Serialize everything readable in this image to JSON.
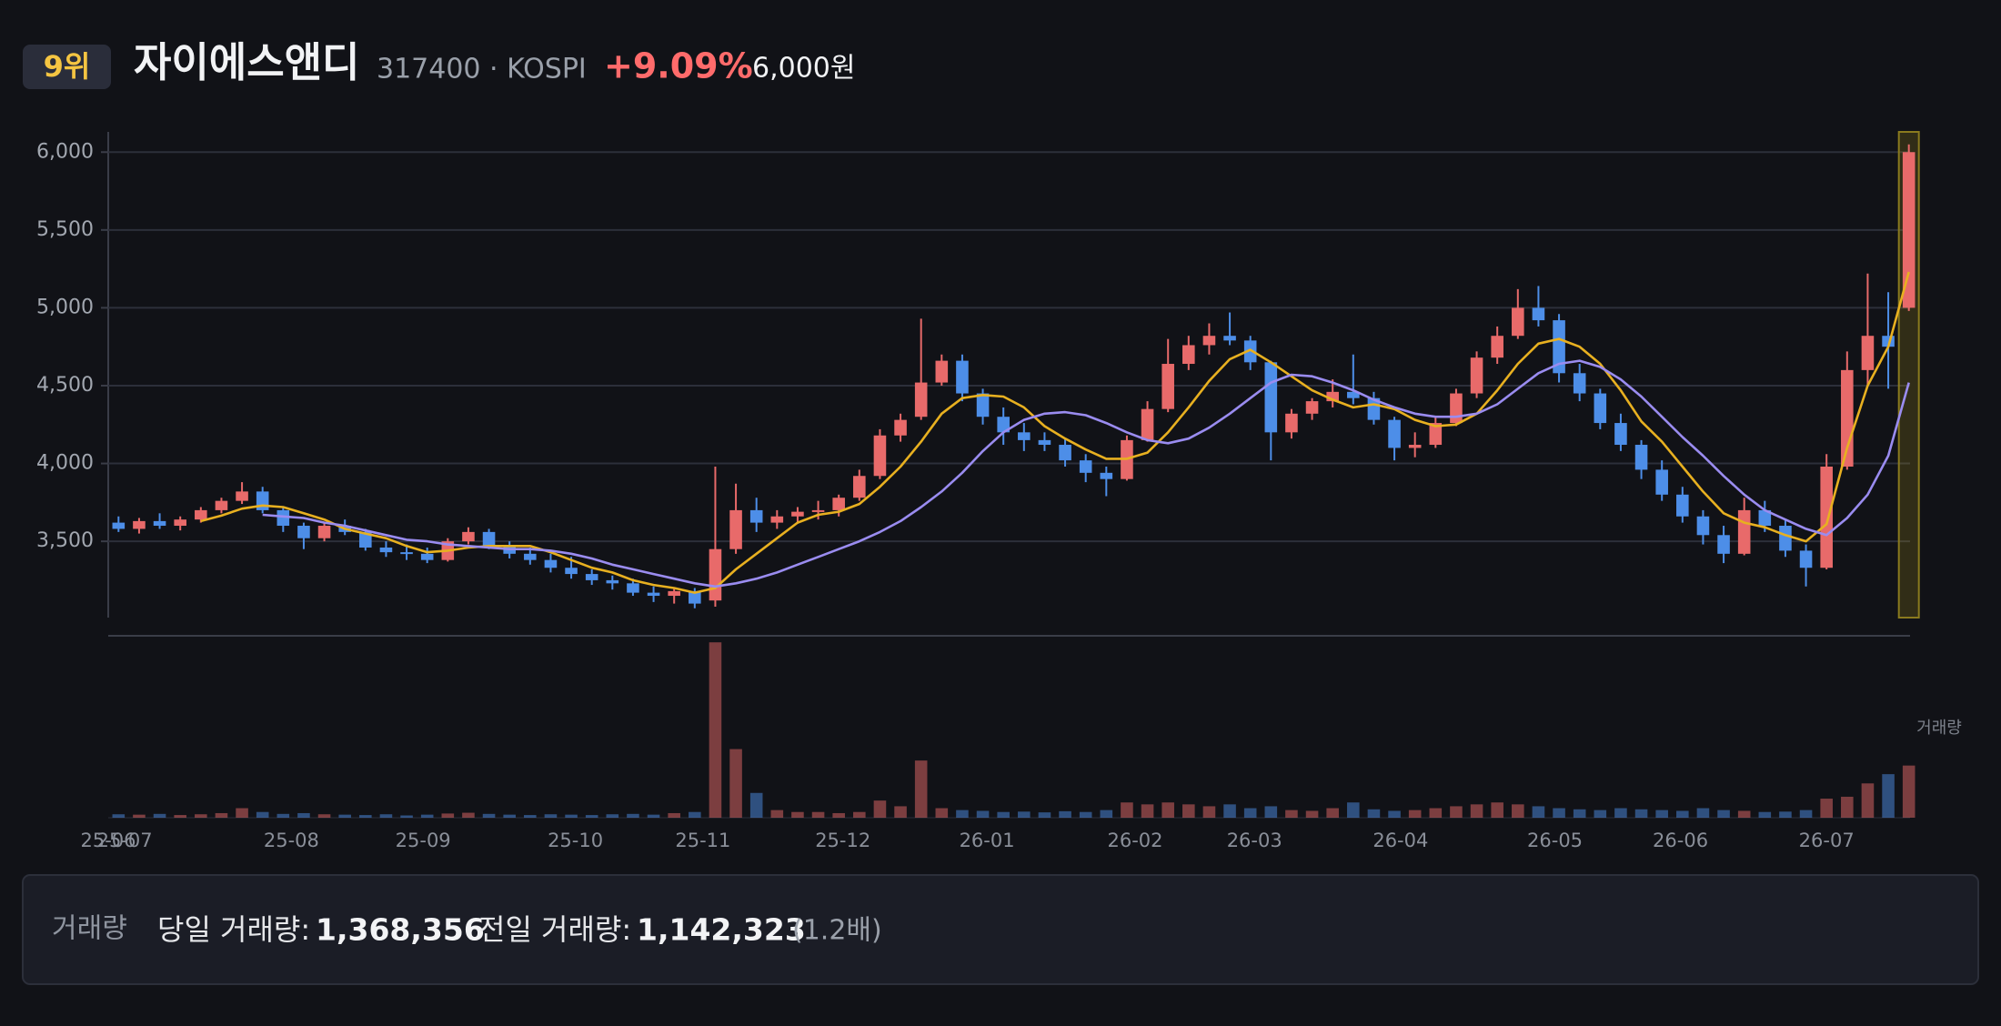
{
  "header": {
    "rank": "9위",
    "name": "자이에스앤디",
    "code": "317400 · KOSPI",
    "change": "+9.09%",
    "price": "6,000원"
  },
  "chart_data": {
    "type": "candlestick",
    "up_color": "#e86a6a",
    "down_color": "#4d8ee8",
    "grid": true,
    "xlim": [
      0,
      88
    ],
    "xticks": [
      {
        "value": 0,
        "label": "25-06"
      },
      {
        "value": 0.8,
        "label": "25-07"
      },
      {
        "value": 8.9,
        "label": "25-08"
      },
      {
        "value": 15.3,
        "label": "25-09"
      },
      {
        "value": 22.7,
        "label": "25-10"
      },
      {
        "value": 28.9,
        "label": "25-11"
      },
      {
        "value": 35.7,
        "label": "25-12"
      },
      {
        "value": 42.7,
        "label": "26-01"
      },
      {
        "value": 49.9,
        "label": "26-02"
      },
      {
        "value": 55.7,
        "label": "26-03"
      },
      {
        "value": 62.8,
        "label": "26-04"
      },
      {
        "value": 70.3,
        "label": "26-05"
      },
      {
        "value": 76.4,
        "label": "26-06"
      },
      {
        "value": 83.5,
        "label": "26-07"
      }
    ],
    "ylim": [
      3010,
      6130
    ],
    "yticks": [
      {
        "value": 3500,
        "label": "3,500"
      },
      {
        "value": 4000,
        "label": "4,000"
      },
      {
        "value": 4500,
        "label": "4,500"
      },
      {
        "value": 5000,
        "label": "5,000"
      },
      {
        "value": 5500,
        "label": "5,500"
      },
      {
        "value": 6000,
        "label": "6,000"
      }
    ],
    "ohlc": [
      [
        3620,
        3660,
        3560,
        3580
      ],
      [
        3580,
        3650,
        3550,
        3630
      ],
      [
        3630,
        3680,
        3580,
        3600
      ],
      [
        3600,
        3660,
        3570,
        3640
      ],
      [
        3640,
        3720,
        3620,
        3700
      ],
      [
        3700,
        3780,
        3680,
        3760
      ],
      [
        3760,
        3880,
        3740,
        3820
      ],
      [
        3820,
        3850,
        3680,
        3700
      ],
      [
        3700,
        3720,
        3560,
        3600
      ],
      [
        3600,
        3620,
        3450,
        3520
      ],
      [
        3520,
        3620,
        3500,
        3600
      ],
      [
        3600,
        3640,
        3540,
        3560
      ],
      [
        3560,
        3580,
        3440,
        3460
      ],
      [
        3460,
        3500,
        3400,
        3430
      ],
      [
        3430,
        3480,
        3380,
        3420
      ],
      [
        3420,
        3460,
        3360,
        3380
      ],
      [
        3380,
        3520,
        3370,
        3500
      ],
      [
        3500,
        3590,
        3480,
        3560
      ],
      [
        3560,
        3580,
        3450,
        3470
      ],
      [
        3470,
        3500,
        3390,
        3420
      ],
      [
        3420,
        3460,
        3350,
        3380
      ],
      [
        3380,
        3420,
        3300,
        3330
      ],
      [
        3330,
        3400,
        3260,
        3290
      ],
      [
        3290,
        3320,
        3220,
        3250
      ],
      [
        3250,
        3280,
        3190,
        3230
      ],
      [
        3230,
        3260,
        3150,
        3170
      ],
      [
        3170,
        3210,
        3110,
        3150
      ],
      [
        3150,
        3200,
        3100,
        3180
      ],
      [
        3180,
        3200,
        3070,
        3100
      ],
      [
        3120,
        3980,
        3080,
        3450
      ],
      [
        3450,
        3870,
        3420,
        3700
      ],
      [
        3700,
        3780,
        3560,
        3620
      ],
      [
        3620,
        3700,
        3580,
        3660
      ],
      [
        3660,
        3720,
        3620,
        3690
      ],
      [
        3690,
        3760,
        3640,
        3700
      ],
      [
        3700,
        3800,
        3660,
        3780
      ],
      [
        3780,
        3960,
        3760,
        3920
      ],
      [
        3920,
        4220,
        3900,
        4180
      ],
      [
        4180,
        4320,
        4140,
        4280
      ],
      [
        4300,
        4930,
        4280,
        4520
      ],
      [
        4520,
        4700,
        4500,
        4660
      ],
      [
        4660,
        4700,
        4400,
        4450
      ],
      [
        4450,
        4480,
        4250,
        4300
      ],
      [
        4300,
        4360,
        4120,
        4200
      ],
      [
        4200,
        4260,
        4080,
        4150
      ],
      [
        4150,
        4200,
        4080,
        4120
      ],
      [
        4120,
        4160,
        3980,
        4020
      ],
      [
        4020,
        4060,
        3880,
        3940
      ],
      [
        3940,
        3980,
        3790,
        3900
      ],
      [
        3900,
        4180,
        3890,
        4150
      ],
      [
        4150,
        4400,
        4140,
        4350
      ],
      [
        4350,
        4800,
        4330,
        4640
      ],
      [
        4640,
        4820,
        4600,
        4760
      ],
      [
        4760,
        4900,
        4700,
        4820
      ],
      [
        4820,
        4970,
        4760,
        4790
      ],
      [
        4790,
        4820,
        4600,
        4650
      ],
      [
        4650,
        4660,
        4020,
        4200
      ],
      [
        4200,
        4350,
        4160,
        4320
      ],
      [
        4320,
        4420,
        4280,
        4400
      ],
      [
        4400,
        4540,
        4360,
        4460
      ],
      [
        4460,
        4700,
        4380,
        4420
      ],
      [
        4420,
        4460,
        4250,
        4280
      ],
      [
        4280,
        4300,
        4020,
        4100
      ],
      [
        4100,
        4200,
        4040,
        4120
      ],
      [
        4120,
        4300,
        4100,
        4260
      ],
      [
        4260,
        4480,
        4240,
        4450
      ],
      [
        4450,
        4720,
        4420,
        4680
      ],
      [
        4680,
        4880,
        4640,
        4820
      ],
      [
        4820,
        5120,
        4800,
        5000
      ],
      [
        5000,
        5140,
        4880,
        4920
      ],
      [
        4920,
        4960,
        4520,
        4580
      ],
      [
        4580,
        4640,
        4400,
        4450
      ],
      [
        4450,
        4480,
        4220,
        4260
      ],
      [
        4260,
        4320,
        4080,
        4120
      ],
      [
        4120,
        4150,
        3900,
        3960
      ],
      [
        3960,
        4020,
        3760,
        3800
      ],
      [
        3800,
        3850,
        3620,
        3660
      ],
      [
        3660,
        3700,
        3480,
        3540
      ],
      [
        3540,
        3600,
        3360,
        3420
      ],
      [
        3420,
        3780,
        3410,
        3700
      ],
      [
        3700,
        3760,
        3560,
        3600
      ],
      [
        3600,
        3640,
        3400,
        3440
      ],
      [
        3440,
        3480,
        3210,
        3330
      ],
      [
        3330,
        4060,
        3320,
        3980
      ],
      [
        3980,
        4720,
        3960,
        4600
      ],
      [
        4600,
        5220,
        4500,
        4820
      ],
      [
        4820,
        5100,
        4480,
        4750
      ],
      [
        5000,
        6050,
        4980,
        6000
      ]
    ],
    "ma": [
      {
        "color": "#e8b020",
        "values": [
          null,
          null,
          null,
          null,
          3630,
          3665,
          3710,
          3730,
          3720,
          3680,
          3640,
          3580,
          3550,
          3520,
          3470,
          3430,
          3440,
          3460,
          3470,
          3470,
          3470,
          3430,
          3380,
          3330,
          3300,
          3250,
          3220,
          3200,
          3170,
          3200,
          3320,
          3420,
          3520,
          3620,
          3670,
          3690,
          3740,
          3850,
          3980,
          4140,
          4320,
          4420,
          4440,
          4430,
          4360,
          4240,
          4160,
          4090,
          4030,
          4030,
          4070,
          4200,
          4360,
          4530,
          4670,
          4730,
          4650,
          4560,
          4470,
          4410,
          4360,
          4380,
          4350,
          4280,
          4240,
          4250,
          4320,
          4470,
          4640,
          4770,
          4800,
          4750,
          4640,
          4470,
          4270,
          4140,
          3980,
          3820,
          3680,
          3620,
          3590,
          3540,
          3500,
          3610,
          4100,
          4500,
          4750,
          5230
        ]
      },
      {
        "color": "#9a8cf0",
        "values": [
          null,
          null,
          null,
          null,
          null,
          null,
          null,
          3670,
          3660,
          3650,
          3620,
          3600,
          3570,
          3540,
          3510,
          3500,
          3480,
          3470,
          3460,
          3450,
          3450,
          3440,
          3420,
          3390,
          3350,
          3320,
          3290,
          3260,
          3230,
          3210,
          3230,
          3260,
          3300,
          3350,
          3400,
          3450,
          3500,
          3560,
          3630,
          3720,
          3820,
          3940,
          4080,
          4200,
          4280,
          4320,
          4330,
          4310,
          4260,
          4200,
          4150,
          4130,
          4160,
          4230,
          4320,
          4420,
          4520,
          4570,
          4560,
          4520,
          4470,
          4410,
          4360,
          4320,
          4300,
          4300,
          4320,
          4380,
          4480,
          4580,
          4640,
          4660,
          4620,
          4540,
          4430,
          4300,
          4170,
          4050,
          3920,
          3800,
          3700,
          3640,
          3580,
          3540,
          3650,
          3800,
          4050,
          4520
        ]
      }
    ],
    "volume": {
      "label": "거래량",
      "ylim": [
        0,
        4700000
      ],
      "values": [
        90000,
        80000,
        100000,
        70000,
        90000,
        120000,
        250000,
        150000,
        100000,
        120000,
        90000,
        80000,
        70000,
        90000,
        60000,
        80000,
        110000,
        130000,
        100000,
        80000,
        70000,
        90000,
        80000,
        70000,
        90000,
        100000,
        80000,
        120000,
        150000,
        4600000,
        1800000,
        650000,
        200000,
        150000,
        150000,
        120000,
        150000,
        450000,
        300000,
        1500000,
        250000,
        200000,
        180000,
        150000,
        160000,
        140000,
        170000,
        150000,
        200000,
        400000,
        350000,
        400000,
        350000,
        300000,
        350000,
        250000,
        300000,
        200000,
        180000,
        250000,
        400000,
        220000,
        180000,
        200000,
        250000,
        300000,
        350000,
        400000,
        350000,
        300000,
        250000,
        220000,
        200000,
        250000,
        220000,
        200000,
        180000,
        250000,
        200000,
        180000,
        150000,
        160000,
        200000,
        500000,
        550000,
        900000,
        1142323,
        1368356
      ]
    }
  },
  "footer": {
    "title": "거래량",
    "today_label": "당일 거래량:",
    "today": "1,368,356",
    "prev_label": "전일 거래량:",
    "prev": "1,142,323",
    "ratio": "(1.2배)"
  }
}
